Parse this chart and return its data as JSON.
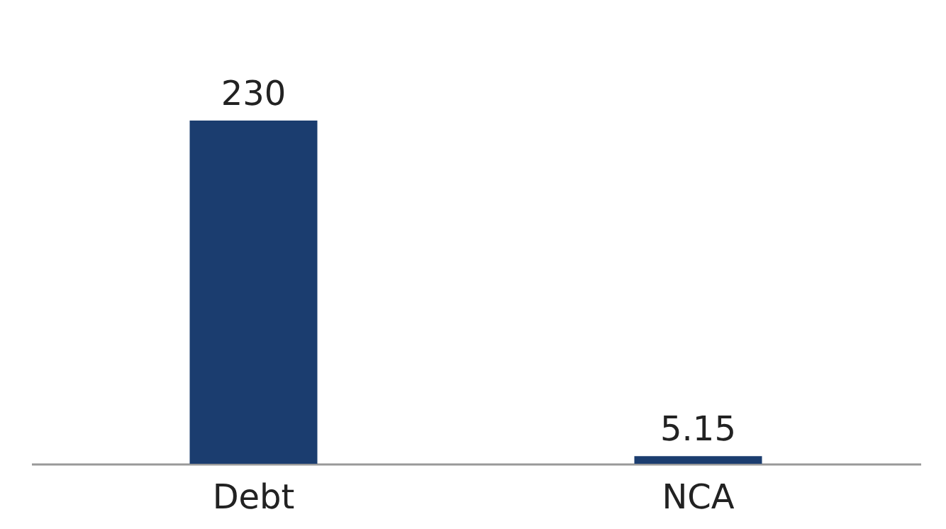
{
  "chart_data": {
    "type": "bar",
    "categories": [
      "Debt",
      "NCA"
    ],
    "values": [
      230,
      5.15
    ],
    "color": "#1b3d6f",
    "data_labels": true
  }
}
